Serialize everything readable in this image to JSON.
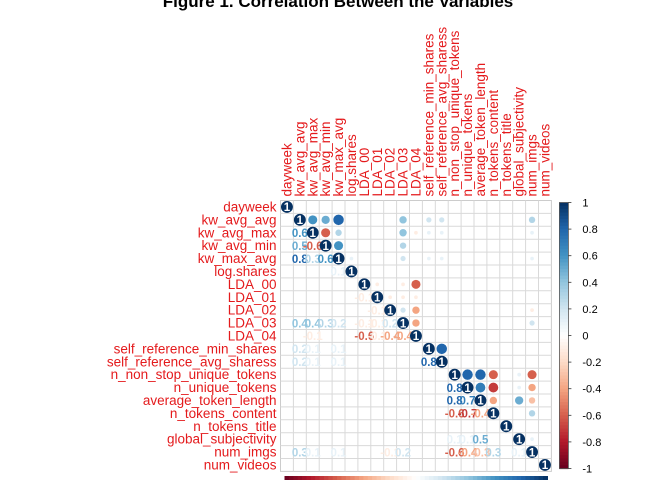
{
  "chart_data": {
    "type": "heatmap",
    "subtype": "correlation-matrix (lower numbers, upper circles)",
    "title": "Figure 1. Correlation Between the Variables",
    "variables": [
      "dayweek",
      "kw_avg_avg",
      "kw_avg_max",
      "kw_avg_min",
      "kw_max_avg",
      "log.shares",
      "LDA_00",
      "LDA_01",
      "LDA_02",
      "LDA_03",
      "LDA_04",
      "self_reference_min_shares",
      "self_reference_avg_sharess",
      "n_non_stop_unique_tokens",
      "n_unique_tokens",
      "average_token_length",
      "n_tokens_content",
      "n_tokens_title",
      "global_subjectivity",
      "num_imgs",
      "num_videos"
    ],
    "correlations": [
      [
        1,
        0,
        0,
        0,
        0,
        0,
        0,
        0,
        0,
        0,
        0,
        0,
        0,
        0,
        0,
        0,
        0,
        0,
        0,
        0,
        0
      ],
      [
        0,
        1,
        0.6,
        0.5,
        0.8,
        0,
        0,
        0,
        0,
        0.4,
        0,
        0.2,
        0.2,
        0,
        0,
        0,
        0,
        0,
        0,
        0.3,
        0
      ],
      [
        0,
        0.6,
        1,
        -0.6,
        0.3,
        0,
        0,
        0,
        0,
        0.4,
        -0.1,
        0.1,
        0.1,
        0,
        0,
        0,
        0,
        0,
        0,
        0.1,
        0
      ],
      [
        0,
        0.5,
        -0.6,
        1,
        0.6,
        0,
        0,
        0,
        0,
        0.3,
        0,
        0,
        0,
        0,
        0,
        0,
        0,
        0,
        0,
        0,
        0
      ],
      [
        0,
        0.8,
        0.3,
        0.6,
        1,
        0.1,
        0,
        0,
        0,
        0.2,
        0,
        0.1,
        0.1,
        0,
        0,
        0,
        0,
        0,
        0,
        0.1,
        0
      ],
      [
        0,
        0,
        0,
        0,
        0.1,
        1,
        0,
        0,
        0,
        0,
        0,
        0,
        0,
        0,
        0,
        0,
        0,
        0,
        0,
        0,
        0
      ],
      [
        0,
        0,
        0,
        0,
        0,
        0,
        1,
        -0.1,
        0,
        -0.1,
        -0.6,
        0,
        0,
        0,
        0,
        0,
        0,
        0,
        0,
        0,
        0
      ],
      [
        0,
        0,
        0,
        0,
        0,
        0,
        -0.1,
        1,
        -0.1,
        -0.1,
        -0.1,
        0,
        0,
        0,
        0,
        0,
        0,
        0,
        0,
        0,
        0
      ],
      [
        0,
        0,
        0,
        0,
        0,
        0,
        0,
        -0.1,
        1,
        0.2,
        -0.4,
        0,
        0,
        0,
        0,
        0,
        0,
        0,
        0,
        -0.1,
        0
      ],
      [
        0,
        0.4,
        0.4,
        0.3,
        0.2,
        0,
        -0.1,
        -0.1,
        0.2,
        1,
        -0.4,
        0,
        0,
        0,
        0,
        0,
        0,
        0,
        0,
        0.2,
        0
      ],
      [
        0,
        0,
        -0.1,
        0,
        0,
        0,
        -0.6,
        -0.1,
        -0.4,
        -0.4,
        1,
        0,
        0,
        0,
        0,
        0,
        0,
        0,
        0,
        0,
        0
      ],
      [
        0,
        0.2,
        0.1,
        0,
        0.1,
        0,
        0,
        0,
        0,
        0,
        0,
        1,
        0.8,
        0,
        0,
        0,
        0,
        0,
        0,
        0,
        0
      ],
      [
        0,
        0.2,
        0.1,
        0,
        0.1,
        0,
        0,
        0,
        0,
        0,
        0,
        0.8,
        1,
        0,
        0,
        0,
        0,
        0,
        0,
        0,
        0
      ],
      [
        0,
        0,
        0,
        0,
        0,
        0,
        0,
        0,
        0,
        0,
        0,
        0,
        0,
        1,
        0.8,
        0.8,
        -0.6,
        0,
        0.1,
        -0.6,
        0
      ],
      [
        0,
        0,
        0,
        0,
        0,
        0,
        0,
        0,
        0,
        0,
        0,
        0,
        0,
        0.8,
        1,
        0.7,
        -0.7,
        0,
        0.1,
        -0.4,
        0
      ],
      [
        0,
        0,
        0,
        0,
        0,
        0,
        0,
        0,
        0,
        0,
        0,
        0,
        0,
        0.8,
        0.7,
        1,
        -0.4,
        0,
        0.5,
        -0.3,
        0
      ],
      [
        0,
        0,
        0,
        0,
        0,
        0,
        0,
        0,
        0,
        0,
        0,
        0,
        0,
        -0.6,
        -0.7,
        -0.4,
        1,
        0,
        0,
        0.3,
        0
      ],
      [
        0,
        0,
        0,
        0,
        0,
        0,
        0,
        0,
        0,
        0,
        0,
        0,
        0,
        0,
        0,
        0,
        0,
        1,
        0,
        0,
        0
      ],
      [
        0,
        0,
        0,
        0,
        0,
        0,
        0,
        0,
        0,
        0,
        0,
        0,
        0,
        0.1,
        0.1,
        0.5,
        0,
        0,
        1,
        0.1,
        0
      ],
      [
        0,
        0.3,
        0.1,
        0,
        0.1,
        0,
        0,
        0,
        -0.1,
        0.2,
        0,
        0,
        0,
        -0.6,
        -0.4,
        -0.3,
        0.3,
        0,
        0.1,
        1,
        0
      ],
      [
        0,
        0,
        0,
        0,
        0,
        0,
        0,
        0,
        0,
        0,
        0,
        0,
        0,
        0,
        0,
        0,
        0,
        0,
        0,
        0,
        1
      ]
    ],
    "colorbar": {
      "ticks": [
        "1",
        "0.8",
        "0.6",
        "0.4",
        "0.2",
        "0",
        "-0.2",
        "-0.4",
        "-0.6",
        "-0.8",
        "-1"
      ],
      "range": [
        -1,
        1
      ],
      "colors": [
        "#67001F",
        "#B2182B",
        "#D6604D",
        "#F4A582",
        "#FDDBC7",
        "#FFFFFF",
        "#D1E5F0",
        "#92C5DE",
        "#4393C3",
        "#2166AC",
        "#053061"
      ]
    },
    "label_color": "#FF0000",
    "grid": true
  }
}
